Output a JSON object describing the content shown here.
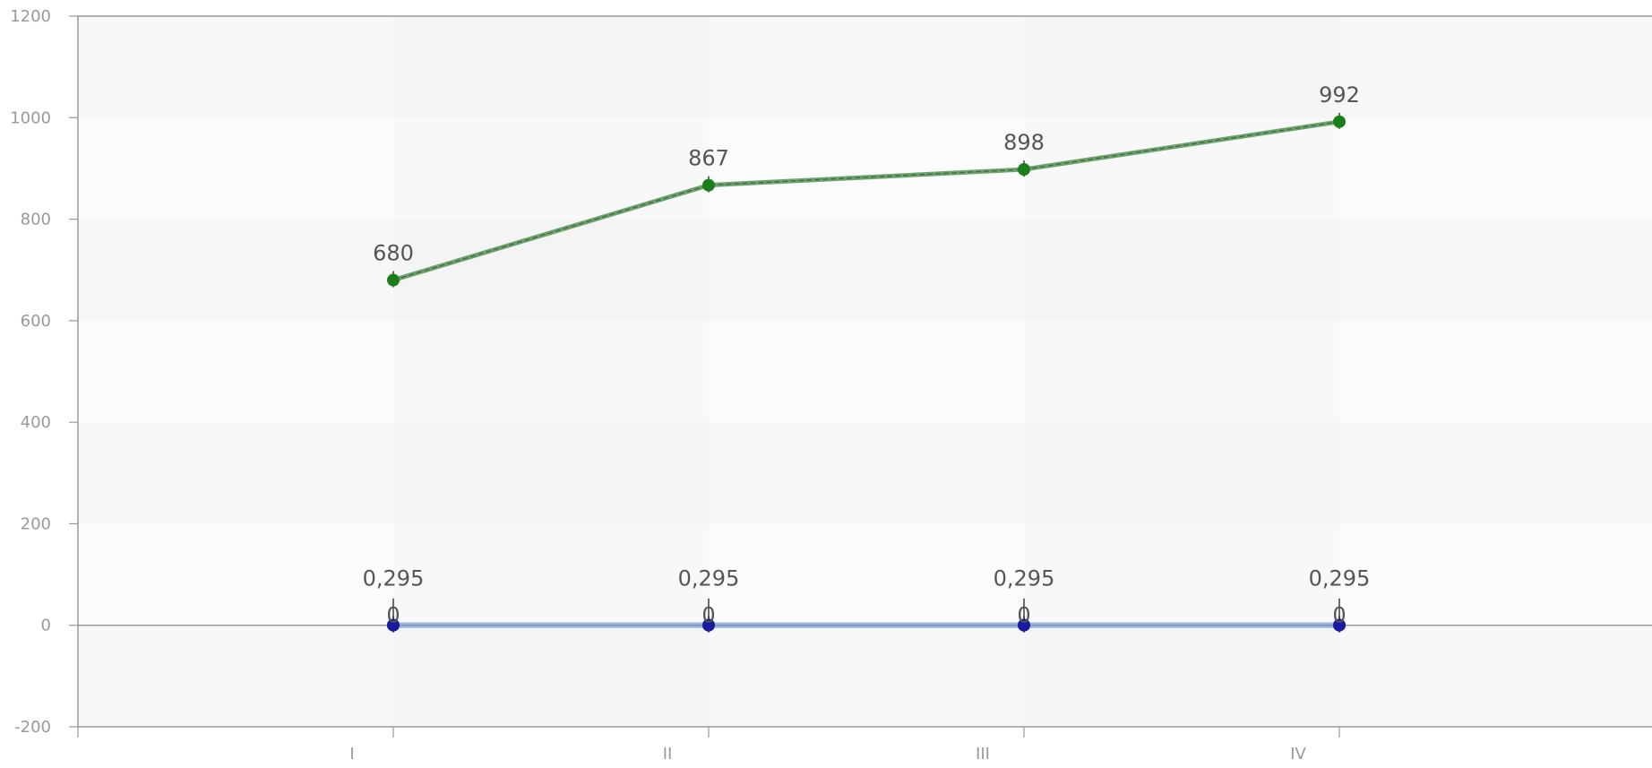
{
  "chart_data": {
    "type": "line",
    "categories": [
      "I",
      "II",
      "III",
      "IV"
    ],
    "ylim": [
      -200,
      1200
    ],
    "yticks": [
      1200,
      1000,
      800,
      600,
      400,
      200,
      0,
      -200
    ],
    "grid": true,
    "legend": "none",
    "series": [
      {
        "values": [
          680,
          867,
          898,
          992
        ],
        "labels": [
          "680",
          "867",
          "898",
          "992"
        ],
        "line_color": "#6ea26e",
        "marker_color": "#1a7f1a",
        "dashed": true
      },
      {
        "values": [
          0.295,
          0.295,
          0.295,
          0.295
        ],
        "labels": [
          "0,295",
          "0,295",
          "0,295",
          "0,295"
        ],
        "line_color": "#9eb6d6",
        "marker_color": "#1a1aa0",
        "dashed": false
      },
      {
        "values": [
          0,
          0,
          0,
          0
        ],
        "labels": [
          "0",
          "0",
          "0",
          "0"
        ],
        "line_color": "#9eb6d6",
        "marker_color": "#1a1aa0",
        "dashed": false
      }
    ]
  }
}
